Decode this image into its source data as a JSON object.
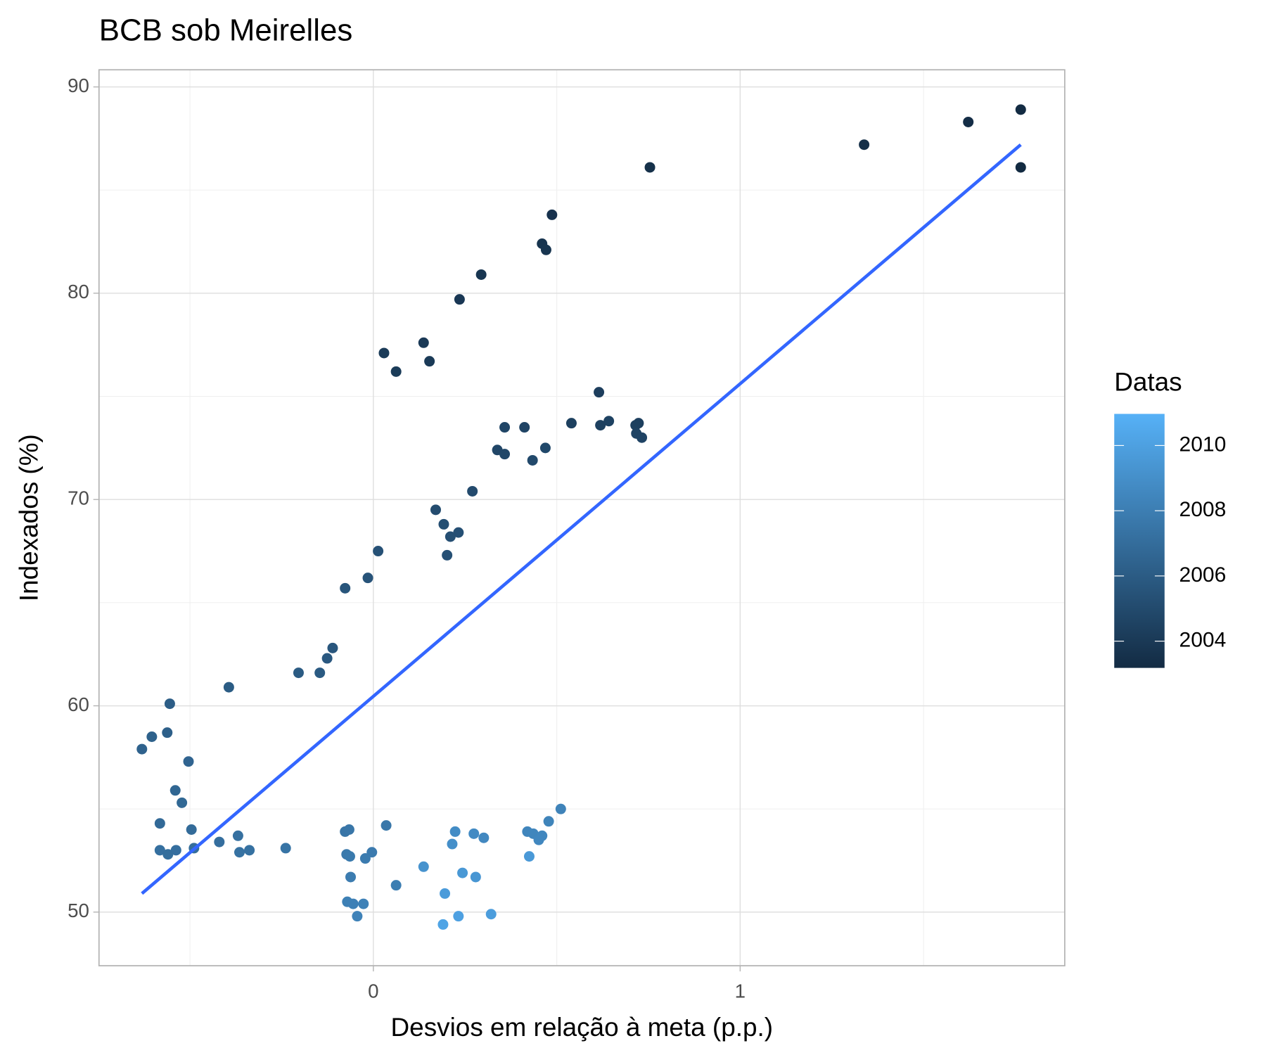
{
  "chart_data": {
    "type": "scatter",
    "title": "BCB sob Meirelles",
    "x_label": "Desvios em relação à meta (p.p.)",
    "y_label": "Indexados (%)",
    "xlim": [
      -0.748,
      1.885
    ],
    "ylim": [
      47.4,
      90.83
    ],
    "xticks": [
      0,
      1
    ],
    "yticks": [
      50,
      60,
      70,
      80,
      90
    ],
    "xminorticks": [
      -0.5,
      0.5,
      1.5
    ],
    "yminorticks": [
      55,
      65,
      75,
      85
    ],
    "grid": true,
    "legend": {
      "title": "Datas",
      "position": "right",
      "colorlim": [
        2003.18,
        2010.97
      ],
      "ticks": [
        2004,
        2006,
        2008,
        2010
      ],
      "low_color": "#132B43",
      "high_color": "#56B1F7"
    },
    "series": [
      {
        "name": "Indexados",
        "x": [
          1.765,
          1.622,
          1.765,
          1.338,
          0.754,
          0.487,
          0.46,
          0.471,
          0.294,
          0.235,
          0.137,
          0.029,
          0.153,
          0.062,
          0.615,
          0.54,
          0.642,
          0.619,
          0.723,
          0.715,
          0.717,
          0.732,
          0.358,
          0.412,
          0.338,
          0.358,
          0.469,
          0.434,
          0.27,
          0.17,
          0.192,
          0.232,
          0.21,
          0.201,
          0.013,
          -0.015,
          -0.077,
          -0.111,
          -0.126,
          -0.146,
          -0.204,
          -0.394,
          -0.555,
          -0.562,
          -0.604,
          -0.631,
          -0.504,
          -0.54,
          -0.522,
          -0.582,
          -0.496,
          -0.489,
          -0.42,
          -0.369,
          -0.365,
          -0.338,
          -0.582,
          -0.538,
          -0.56,
          -0.239,
          -0.077,
          -0.066,
          0.035,
          -0.073,
          -0.064,
          -0.004,
          -0.022,
          -0.062,
          0.062,
          -0.071,
          -0.055,
          -0.027,
          -0.044,
          0.511,
          0.478,
          0.42,
          0.436,
          0.46,
          0.451,
          0.301,
          0.274,
          0.223,
          0.215,
          0.137,
          0.425,
          0.243,
          0.279,
          0.195,
          0.321,
          0.232,
          0.19
        ],
        "values": [
          88.9,
          88.3,
          86.1,
          87.2,
          86.1,
          83.8,
          82.4,
          82.1,
          80.9,
          79.7,
          77.6,
          77.1,
          76.7,
          76.2,
          75.2,
          73.7,
          73.8,
          73.6,
          73.7,
          73.6,
          73.2,
          73.0,
          73.5,
          73.5,
          72.4,
          72.2,
          72.5,
          71.9,
          70.4,
          69.5,
          68.8,
          68.4,
          68.2,
          67.3,
          67.5,
          66.2,
          65.7,
          62.8,
          62.3,
          61.6,
          61.6,
          60.9,
          60.1,
          58.7,
          58.5,
          57.9,
          57.3,
          55.9,
          55.3,
          54.3,
          54.0,
          53.1,
          53.4,
          53.7,
          52.9,
          53.0,
          53.0,
          53.0,
          52.8,
          53.1,
          53.9,
          54.0,
          54.2,
          52.8,
          52.7,
          52.9,
          52.6,
          51.7,
          51.3,
          50.5,
          50.4,
          50.4,
          49.8,
          55.0,
          54.4,
          53.9,
          53.8,
          53.7,
          53.5,
          53.6,
          53.8,
          53.9,
          53.3,
          52.2,
          52.7,
          51.9,
          51.7,
          50.9,
          49.9,
          49.8,
          49.4
        ],
        "dates": [
          2003.2,
          2003.3,
          2003.1,
          2003.4,
          2003.5,
          2003.6,
          2003.7,
          2003.75,
          2003.8,
          2003.9,
          2004.0,
          2004.1,
          2004.05,
          2004.15,
          2004.3,
          2004.4,
          2004.5,
          2004.45,
          2004.35,
          2004.4,
          2004.55,
          2004.6,
          2004.7,
          2004.65,
          2004.75,
          2004.8,
          2004.85,
          2004.9,
          2005.0,
          2005.1,
          2005.2,
          2005.3,
          2005.25,
          2005.35,
          2005.4,
          2005.5,
          2005.6,
          2005.7,
          2005.8,
          2005.9,
          2005.95,
          2006.0,
          2006.1,
          2006.2,
          2006.3,
          2006.4,
          2006.5,
          2006.6,
          2006.7,
          2006.8,
          2006.9,
          2007.0,
          2007.1,
          2007.2,
          2007.3,
          2007.25,
          2007.15,
          2007.1,
          2007.05,
          2007.4,
          2007.5,
          2007.55,
          2007.6,
          2007.7,
          2007.75,
          2007.8,
          2007.85,
          2007.9,
          2008.0,
          2008.1,
          2008.15,
          2008.2,
          2008.25,
          2008.3,
          2008.35,
          2008.4,
          2008.45,
          2008.5,
          2008.55,
          2008.6,
          2008.7,
          2008.8,
          2009.0,
          2009.2,
          2009.6,
          2009.5,
          2009.4,
          2009.7,
          2009.8,
          2010.0,
          2010.2
        ]
      }
    ],
    "trend": {
      "x": [
        -0.631,
        1.765
      ],
      "values": [
        50.9,
        87.2
      ],
      "color": "#3366FF"
    }
  }
}
